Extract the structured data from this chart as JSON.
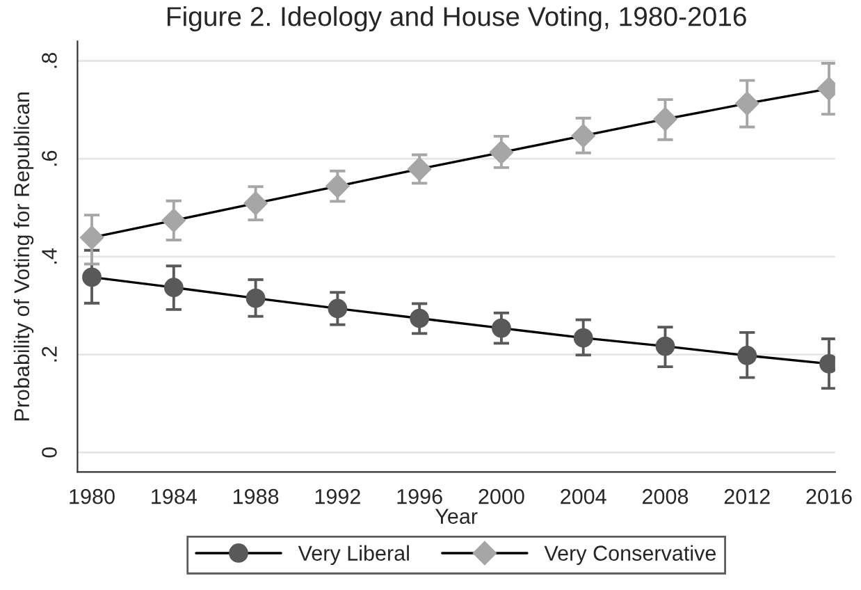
{
  "chart_data": {
    "type": "line",
    "title": "Figure 2. Ideology and House Voting, 1980-2016",
    "xlabel": "Year",
    "ylabel": "Probability of Voting for Republican",
    "x": [
      1980,
      1984,
      1988,
      1992,
      1996,
      2000,
      2004,
      2008,
      2012,
      2016
    ],
    "series": [
      {
        "name": "Very Liberal",
        "color": "#595959",
        "marker": "circle",
        "values": [
          0.358,
          0.337,
          0.315,
          0.294,
          0.274,
          0.254,
          0.234,
          0.217,
          0.198,
          0.181
        ],
        "errors": [
          [
            0.305,
            0.413
          ],
          [
            0.292,
            0.381
          ],
          [
            0.278,
            0.353
          ],
          [
            0.261,
            0.327
          ],
          [
            0.243,
            0.304
          ],
          [
            0.223,
            0.285
          ],
          [
            0.199,
            0.271
          ],
          [
            0.175,
            0.256
          ],
          [
            0.153,
            0.245
          ],
          [
            0.131,
            0.232
          ]
        ]
      },
      {
        "name": "Very Conservative",
        "color": "#a6a6a6",
        "marker": "diamond",
        "values": [
          0.439,
          0.474,
          0.509,
          0.544,
          0.579,
          0.613,
          0.647,
          0.681,
          0.713,
          0.743
        ],
        "errors": [
          [
            0.385,
            0.485
          ],
          [
            0.434,
            0.514
          ],
          [
            0.475,
            0.543
          ],
          [
            0.513,
            0.575
          ],
          [
            0.55,
            0.608
          ],
          [
            0.582,
            0.646
          ],
          [
            0.612,
            0.683
          ],
          [
            0.639,
            0.721
          ],
          [
            0.665,
            0.76
          ],
          [
            0.691,
            0.795
          ]
        ]
      }
    ],
    "xlim": [
      1979.3,
      2016.3
    ],
    "xticks": [
      1980,
      1984,
      1988,
      1992,
      1996,
      2000,
      2004,
      2008,
      2012,
      2016
    ],
    "ylim": [
      -0.04,
      0.84
    ],
    "yticks": [
      {
        "value": 0,
        "label": "0"
      },
      {
        "value": 0.2,
        "label": ".2"
      },
      {
        "value": 0.4,
        "label": ".4"
      },
      {
        "value": 0.6,
        "label": ".6"
      },
      {
        "value": 0.8,
        "label": ".8"
      }
    ],
    "grid": "y",
    "legend": "bottom",
    "line_style": "solid"
  }
}
